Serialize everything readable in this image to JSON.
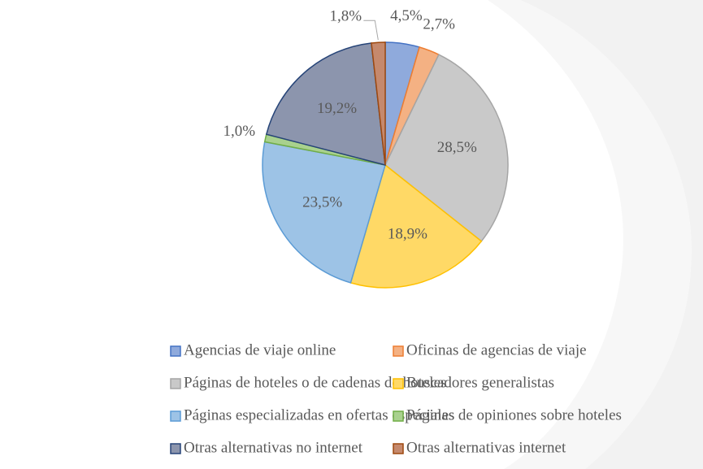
{
  "chart_data": {
    "type": "pie",
    "categories": [
      "Agencias de viaje online",
      "Oficinas de agencias de viaje",
      "Páginas de hoteles o de cadenas de hoteles",
      "Buscadores generalistas",
      "Páginas especializadas en ofertas especiales",
      "Páginas de opiniones sobre hoteles",
      "Otras alternativas no internet",
      "Otras alternativas internet"
    ],
    "values": [
      4.5,
      2.7,
      28.5,
      18.9,
      23.5,
      1.0,
      19.2,
      1.8
    ],
    "value_labels": [
      "4,5%",
      "2,7%",
      "28,5%",
      "18,9%",
      "23,5%",
      "1,0%",
      "19,2%",
      "1,8%"
    ],
    "colors": [
      "#8faadc",
      "#f4b183",
      "#c9c9c9",
      "#ffd966",
      "#9dc3e6",
      "#a9d18e",
      "#8c95ad",
      "#c5896d"
    ],
    "edge_colors": [
      "#4472c4",
      "#ed7d31",
      "#a5a5a5",
      "#ffc000",
      "#5b9bd5",
      "#70ad47",
      "#264478",
      "#9e480e"
    ],
    "legend": "bottom"
  }
}
